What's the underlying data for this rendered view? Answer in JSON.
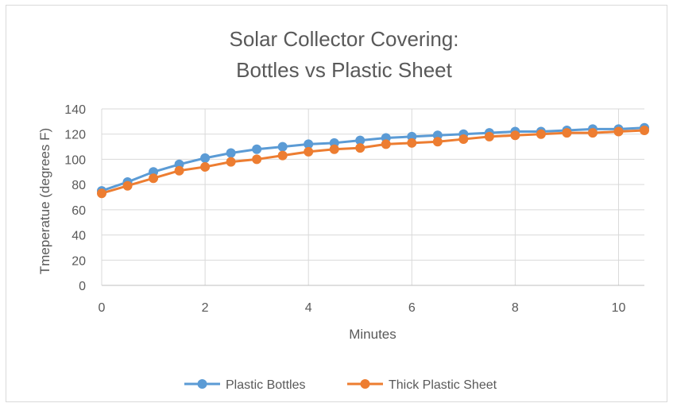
{
  "chart_data": {
    "type": "line",
    "title_lines": [
      "Solar Collector Covering:",
      "Bottles vs Plastic Sheet"
    ],
    "xlabel": "Minutes",
    "ylabel": "Tmeperatue (degrees F)",
    "xlim": [
      0,
      10.5
    ],
    "ylim": [
      0,
      140
    ],
    "x_ticks": [
      0,
      2,
      4,
      6,
      8,
      10
    ],
    "x_tick_labels": [
      "0",
      "2",
      "4",
      "6",
      "8",
      "10"
    ],
    "y_ticks": [
      0,
      20,
      40,
      60,
      80,
      100,
      120,
      140
    ],
    "y_tick_labels": [
      "0",
      "20",
      "40",
      "60",
      "80",
      "100",
      "120",
      "140"
    ],
    "grid": true,
    "legend_position": "bottom",
    "x": [
      0,
      0.5,
      1,
      1.5,
      2,
      2.5,
      3,
      3.5,
      4,
      4.5,
      5,
      5.5,
      6,
      6.5,
      7,
      7.5,
      8,
      8.5,
      9,
      9.5,
      10,
      10.5
    ],
    "series": [
      {
        "name": "Plastic Bottles",
        "color": "#5b9bd5",
        "values": [
          75,
          82,
          90,
          96,
          101,
          105,
          108,
          110,
          112,
          113,
          115,
          117,
          118,
          119,
          120,
          121,
          122,
          122,
          123,
          124,
          124,
          125
        ]
      },
      {
        "name": "Thick Plastic Sheet",
        "color": "#ed7d31",
        "values": [
          73,
          79,
          85,
          91,
          94,
          98,
          100,
          103,
          106,
          108,
          109,
          112,
          113,
          114,
          116,
          118,
          119,
          120,
          121,
          121,
          122,
          123
        ]
      }
    ]
  }
}
